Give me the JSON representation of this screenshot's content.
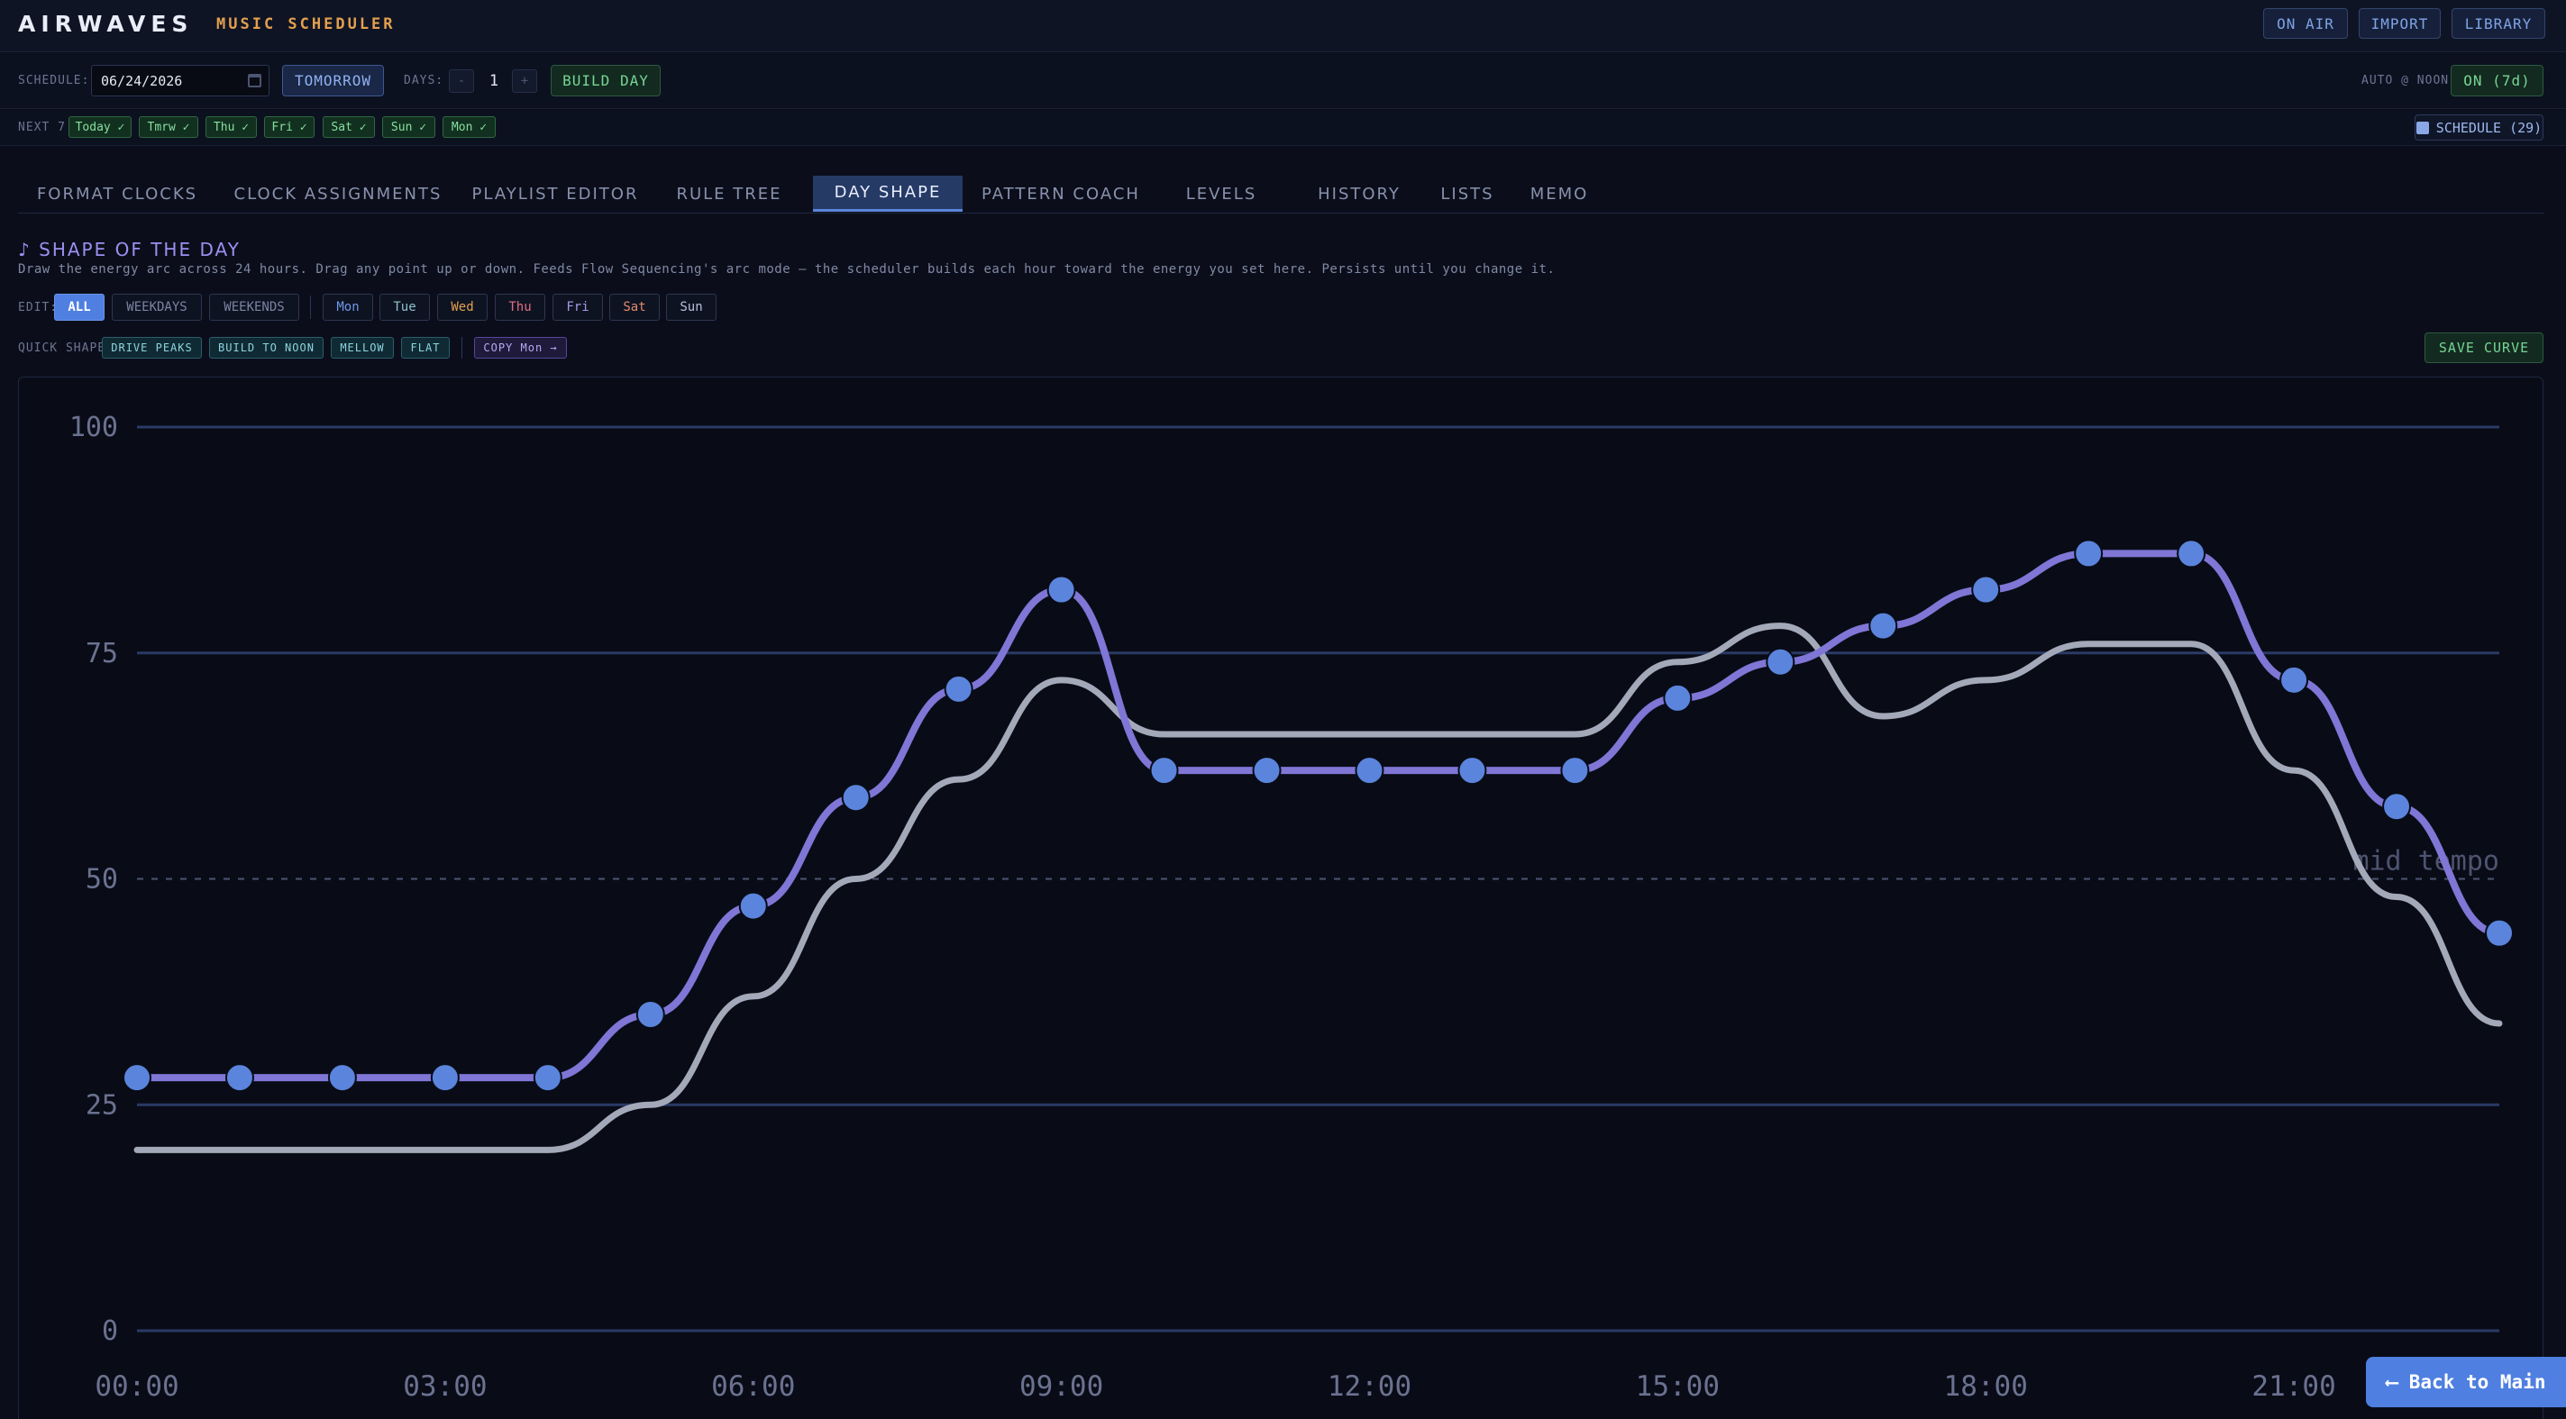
{
  "header": {
    "brand": "AIRWAVES",
    "subtitle": "MUSIC SCHEDULER",
    "buttons": {
      "on_air": "ON AIR",
      "import": "IMPORT",
      "library": "LIBRARY"
    }
  },
  "schedule": {
    "label": "SCHEDULE:",
    "date_value": "06/24/2026",
    "tomorrow": "TOMORROW",
    "days_label": "DAYS:",
    "minus": "-",
    "days_value": "1",
    "plus": "+",
    "build_day": "BUILD DAY",
    "auto_label": "AUTO @ NOON:",
    "auto_value": "ON (7d)"
  },
  "next7": {
    "label": "NEXT 7:",
    "days": [
      "Today ✓",
      "Tmrw ✓",
      "Thu ✓",
      "Fri ✓",
      "Sat ✓",
      "Sun ✓",
      "Mon ✓"
    ],
    "schedule_button": "SCHEDULE (29)"
  },
  "tabs": [
    "FORMAT CLOCKS",
    "CLOCK ASSIGNMENTS",
    "PLAYLIST EDITOR",
    "RULE TREE",
    "DAY SHAPE",
    "PATTERN COACH",
    "LEVELS",
    "HISTORY",
    "LISTS",
    "MEMO"
  ],
  "active_tab": "DAY SHAPE",
  "section": {
    "title": "♪ SHAPE OF THE DAY",
    "description": "Draw the energy arc across 24 hours. Drag any point up or down. Feeds Flow Sequencing's arc mode — the scheduler builds each hour toward the energy you set here. Persists until you change it."
  },
  "edit": {
    "label": "EDIT:",
    "groups": [
      "ALL",
      "WEEKDAYS",
      "WEEKENDS"
    ],
    "active": "ALL",
    "days": [
      "Mon",
      "Tue",
      "Wed",
      "Thu",
      "Fri",
      "Sat",
      "Sun"
    ]
  },
  "quick_shape": {
    "label": "QUICK SHAPE",
    "buttons": [
      "DRIVE PEAKS",
      "BUILD TO NOON",
      "MELLOW",
      "FLAT"
    ],
    "copy": "COPY Mon →",
    "save": "SAVE CURVE"
  },
  "colors": {
    "accent": "#4f7fe0",
    "curve_edit": "#7f76d6",
    "curve_ref": "#a4a9b9",
    "point": "#5b84dc",
    "green": "#77d594",
    "orange": "#e3a04e"
  },
  "chart_data": {
    "type": "line",
    "x": [
      0,
      1,
      2,
      3,
      4,
      5,
      6,
      7,
      8,
      9,
      10,
      11,
      12,
      13,
      14,
      15,
      16,
      17,
      18,
      19,
      20,
      21,
      22,
      23
    ],
    "x_tick_labels": [
      "00:00",
      "03:00",
      "06:00",
      "09:00",
      "12:00",
      "15:00",
      "18:00",
      "21:00"
    ],
    "x_tick_positions": [
      0,
      3,
      6,
      9,
      12,
      15,
      18,
      21
    ],
    "y_ticks": [
      0,
      25,
      50,
      75,
      100
    ],
    "ylim": [
      0,
      100
    ],
    "xlim": [
      0,
      23
    ],
    "reference_line": {
      "value": 50,
      "label": "mid tempo"
    },
    "series": [
      {
        "values": [
          28,
          28,
          28,
          28,
          28,
          35,
          47,
          59,
          71,
          82,
          62,
          62,
          62,
          62,
          62,
          70,
          74,
          78,
          82,
          86,
          86,
          72,
          58,
          44
        ]
      },
      {
        "values": [
          20,
          20,
          20,
          20,
          20,
          25,
          37,
          50,
          61,
          72,
          66,
          66,
          66,
          66,
          66,
          74,
          78,
          68,
          72,
          76,
          76,
          62,
          48,
          34
        ]
      }
    ]
  },
  "back_button": "⟵ Back to Main"
}
